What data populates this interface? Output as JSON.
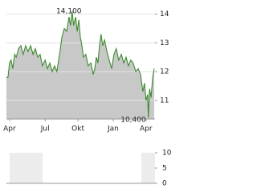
{
  "chart_data": [
    {
      "type": "line",
      "color": "#3d8a2f",
      "fill": "#c8c8c8",
      "x": [
        0,
        4,
        8,
        12,
        16,
        21,
        25,
        31,
        37,
        43,
        49,
        55,
        62,
        68,
        74,
        80,
        86,
        92,
        99,
        105,
        111,
        117,
        123,
        129,
        136,
        142,
        148,
        154,
        160,
        164,
        168,
        172,
        177,
        181,
        185,
        189,
        193,
        197,
        203,
        209,
        216,
        222,
        226,
        230,
        234,
        238,
        242,
        246,
        251,
        257,
        263,
        269,
        275,
        281,
        287,
        294,
        300,
        306,
        312,
        318,
        324,
        331,
        337,
        343,
        349,
        353,
        357,
        361,
        363,
        366,
        370,
        374,
        378
      ],
      "values": [
        11.8,
        11.8,
        12.3,
        12.4,
        12.1,
        12.6,
        12.5,
        12.8,
        12.9,
        12.6,
        12.9,
        12.7,
        12.9,
        12.6,
        12.8,
        12.5,
        12.6,
        12.2,
        12.4,
        12.1,
        12.3,
        12.0,
        12.2,
        12.0,
        12.6,
        13.2,
        13.5,
        13.4,
        13.9,
        13.6,
        14.1,
        13.6,
        13.9,
        13.4,
        13.8,
        13.2,
        12.9,
        12.5,
        12.6,
        12.2,
        12.3,
        11.9,
        12.1,
        12.5,
        12.3,
        12.9,
        13.3,
        12.9,
        13.1,
        12.7,
        12.4,
        12.1,
        12.6,
        12.8,
        12.4,
        12.6,
        12.3,
        12.5,
        12.2,
        12.4,
        12.3,
        12.0,
        12.1,
        11.9,
        11.3,
        11.6,
        11.0,
        11.2,
        10.4,
        11.4,
        11.1,
        11.8,
        12.1
      ],
      "xlim": [
        0,
        380
      ],
      "xticks": [
        {
          "value": 8,
          "label": "Apr"
        },
        {
          "value": 99,
          "label": "Jul"
        },
        {
          "value": 183,
          "label": "Okt"
        },
        {
          "value": 273,
          "label": "Jan"
        },
        {
          "value": 357,
          "label": "Apr"
        }
      ],
      "ylim": [
        10.35,
        14.35
      ],
      "yticks": [
        11,
        12,
        13,
        14
      ],
      "grid": true,
      "annotations": [
        {
          "x": 168,
          "value": 14.1,
          "label": "14,100"
        },
        {
          "x": 363,
          "value": 10.4,
          "label": "10,400"
        }
      ]
    },
    {
      "type": "bar",
      "ylim": [
        0,
        10
      ],
      "yticks": [
        0,
        5,
        10
      ]
    }
  ]
}
